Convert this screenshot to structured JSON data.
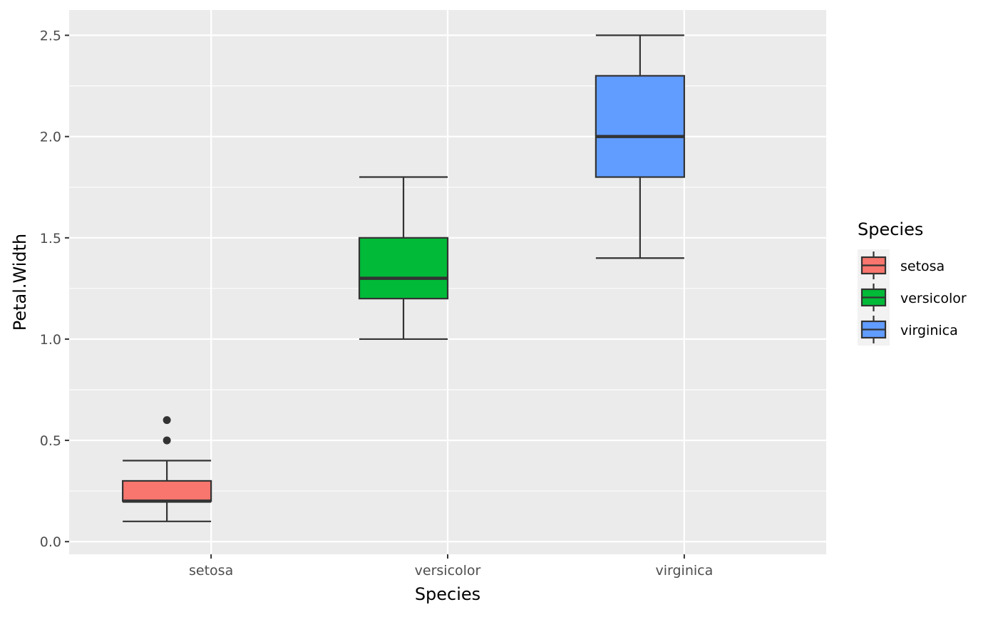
{
  "chart_data": {
    "type": "boxplot",
    "title": "",
    "xlabel": "Species",
    "ylabel": "Petal.Width",
    "ylim": [
      -0.0625,
      2.625
    ],
    "yticks": [
      0.0,
      0.5,
      1.0,
      1.5,
      2.0,
      2.5
    ],
    "ytick_labels": [
      "0.0",
      "0.5",
      "1.0",
      "1.5",
      "2.0",
      "2.5"
    ],
    "y_minor_ticks": [
      0.25,
      0.75,
      1.25,
      1.75,
      2.25
    ],
    "categories": [
      "setosa",
      "versicolor",
      "virginica"
    ],
    "series": [
      {
        "name": "setosa",
        "color": "#F8766D",
        "lower_whisker": 0.1,
        "q1": 0.2,
        "median": 0.2,
        "q3": 0.3,
        "upper_whisker": 0.4,
        "outliers": [
          0.5,
          0.6
        ]
      },
      {
        "name": "versicolor",
        "color": "#00BA38",
        "lower_whisker": 1.0,
        "q1": 1.2,
        "median": 1.3,
        "q3": 1.5,
        "upper_whisker": 1.8,
        "outliers": []
      },
      {
        "name": "virginica",
        "color": "#619CFF",
        "lower_whisker": 1.4,
        "q1": 1.8,
        "median": 2.0,
        "q3": 2.3,
        "upper_whisker": 2.5,
        "outliers": []
      }
    ],
    "legend": {
      "title": "Species",
      "position": "right",
      "entries": [
        "setosa",
        "versicolor",
        "virginica"
      ]
    },
    "grid": true,
    "panel_background": "#EBEBEB",
    "grid_color": "#FFFFFF",
    "box_line_color": "#333333"
  }
}
